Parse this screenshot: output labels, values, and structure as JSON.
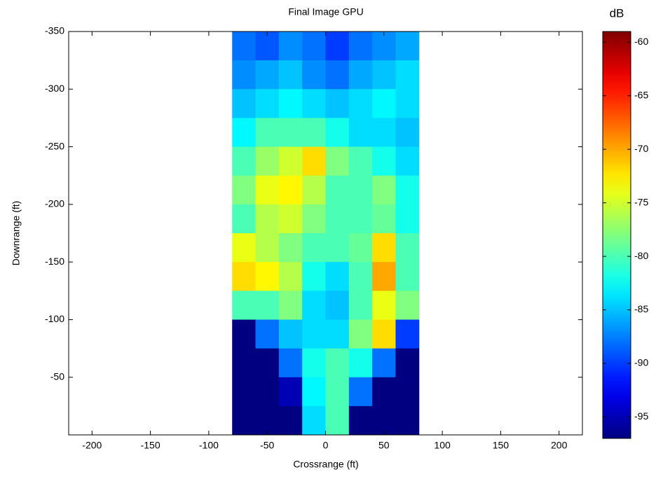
{
  "chart_data": {
    "type": "heatmap",
    "title": "Final Image GPU",
    "x_label": "Crossrange (ft)",
    "y_label": "Downrange (ft)",
    "colorbar_label": "dB",
    "colormap": "jet",
    "x": [
      -70,
      -50,
      -30,
      -10,
      10,
      30,
      50,
      70
    ],
    "y": [
      -337.5,
      -312.5,
      -287.5,
      -262.5,
      -237.5,
      -212.5,
      -187.5,
      -162.5,
      -137.5,
      -112.5,
      -87.5,
      -62.5,
      -37.5,
      -12.5
    ],
    "z": [
      [
        -88,
        -89,
        -87,
        -88,
        -90,
        -88,
        -87,
        -86
      ],
      [
        -87,
        -86,
        -85,
        -87,
        -88,
        -86,
        -85,
        -84
      ],
      [
        -85,
        -84,
        -83,
        -84,
        -85,
        -84,
        -83,
        -84
      ],
      [
        -83,
        -80,
        -80,
        -80,
        -82,
        -84,
        -84,
        -85
      ],
      [
        -80,
        -77,
        -75,
        -72,
        -78,
        -80,
        -82,
        -84
      ],
      [
        -78,
        -74,
        -73,
        -76,
        -80,
        -80,
        -78,
        -82
      ],
      [
        -80,
        -76,
        -75,
        -78,
        -80,
        -80,
        -79,
        -82
      ],
      [
        -74,
        -76,
        -78,
        -80,
        -80,
        -79,
        -72,
        -80
      ],
      [
        -72,
        -73,
        -76,
        -82,
        -84,
        -80,
        -70,
        -80
      ],
      [
        -80,
        -80,
        -78,
        -84,
        -85,
        -80,
        -74,
        -78
      ],
      [
        -97,
        -88,
        -85,
        -84,
        -84,
        -78,
        -72,
        -90
      ],
      [
        -97,
        -97,
        -88,
        -82,
        -80,
        -82,
        -88,
        -97
      ],
      [
        -97,
        -97,
        -95,
        -83,
        -80,
        -88,
        -97,
        -97
      ],
      [
        -97,
        -97,
        -97,
        -84,
        -80,
        -97,
        -97,
        -97
      ]
    ],
    "xlim": [
      -220,
      220
    ],
    "xticks": [
      -200,
      -150,
      -100,
      -50,
      0,
      50,
      100,
      150,
      200
    ],
    "ylim": [
      0,
      -350
    ],
    "yticks": [
      -350,
      -300,
      -250,
      -200,
      -150,
      -100,
      -50
    ],
    "clim": [
      -97,
      -59
    ],
    "cticks": [
      -95,
      -90,
      -85,
      -80,
      -75,
      -70,
      -65,
      -60
    ]
  }
}
